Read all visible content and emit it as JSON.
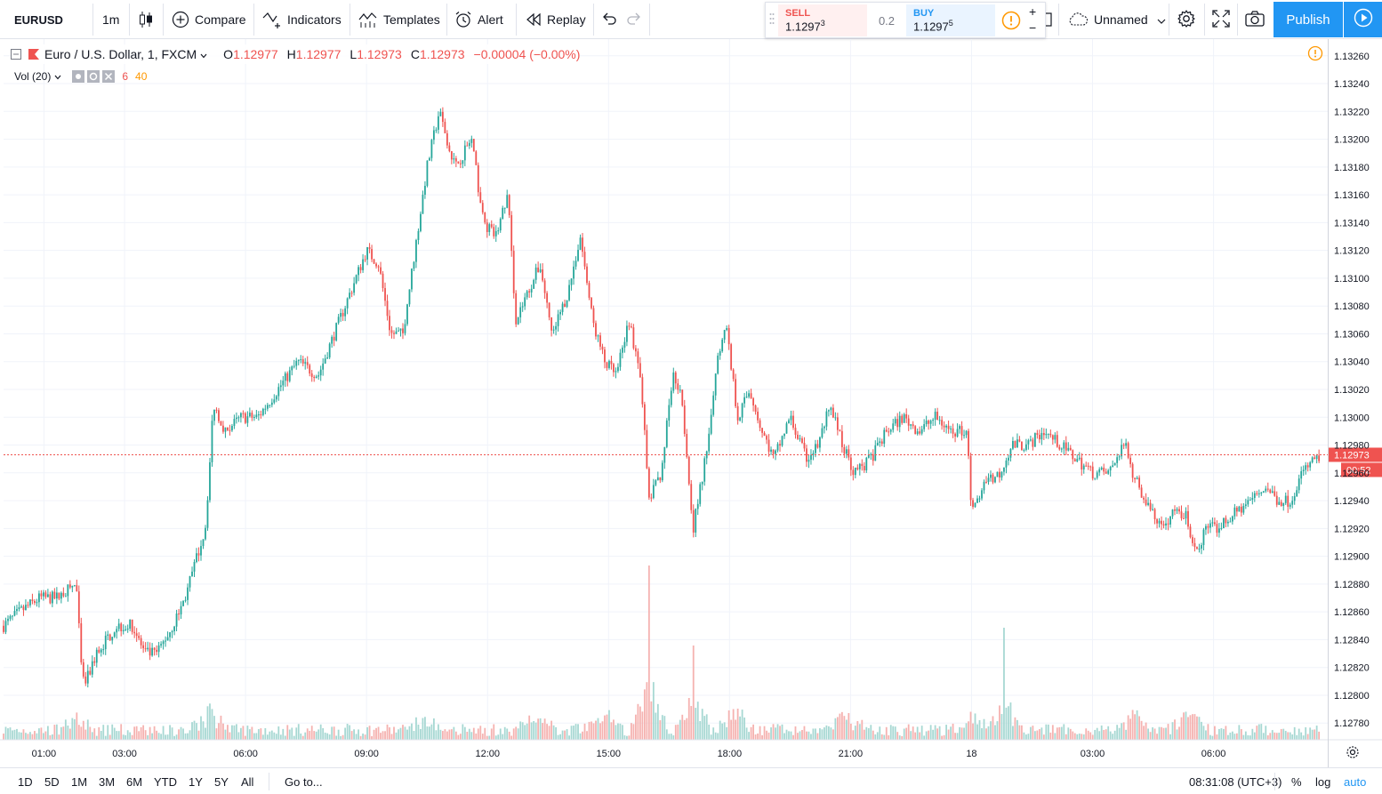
{
  "toolbar": {
    "symbol": "EURUSD",
    "interval": "1m",
    "compare_label": "Compare",
    "indicators_label": "Indicators",
    "templates_label": "Templates",
    "alert_label": "Alert",
    "replay_label": "Replay",
    "layout_name": "Unnamed",
    "publish_label": "Publish"
  },
  "trade_panel": {
    "sell_label": "SELL",
    "sell_price": "1.1297",
    "sell_price_sup": "3",
    "spread": "0.2",
    "buy_label": "BUY",
    "buy_price": "1.1297",
    "buy_price_sup": "5"
  },
  "legend": {
    "title": "Euro / U.S. Dollar, 1, FXCM",
    "open_label": "O",
    "open": "1.12977",
    "high_label": "H",
    "high": "1.12977",
    "low_label": "L",
    "low": "1.12973",
    "close_label": "C",
    "close": "1.12973",
    "change": "−0.00004 (−0.00%)",
    "vol_label": "Vol (20)",
    "vol_value": "6",
    "vol_ma": "40"
  },
  "chart_data": {
    "type": "candlestick",
    "symbol": "EURUSD",
    "interval": "1m",
    "exchange": "FXCM",
    "y_ticks": [
      "1.13260",
      "1.13240",
      "1.13220",
      "1.13200",
      "1.13180",
      "1.13160",
      "1.13140",
      "1.13120",
      "1.13100",
      "1.13080",
      "1.13060",
      "1.13040",
      "1.13020",
      "1.13000",
      "1.12980",
      "1.12960",
      "1.12940",
      "1.12920",
      "1.12900",
      "1.12880",
      "1.12860",
      "1.12840",
      "1.12820",
      "1.12800",
      "1.12780"
    ],
    "y_tick_values": [
      1.1326,
      1.1324,
      1.1322,
      1.132,
      1.1318,
      1.1316,
      1.1314,
      1.1312,
      1.131,
      1.1308,
      1.1306,
      1.1304,
      1.1302,
      1.13,
      1.1298,
      1.1296,
      1.1294,
      1.1292,
      1.129,
      1.1288,
      1.1286,
      1.1284,
      1.1282,
      1.128,
      1.1278
    ],
    "x_ticks": [
      "01:00",
      "03:00",
      "06:00",
      "09:00",
      "12:00",
      "15:00",
      "18:00",
      "21:00",
      "18",
      "03:00",
      "06:00"
    ],
    "x_tick_hours": [
      1,
      3,
      6,
      9,
      12,
      15,
      18,
      21,
      24,
      27,
      30
    ],
    "x_range_hours": [
      0.0,
      32.7
    ],
    "ylim": [
      1.12768,
      1.13272
    ],
    "current_price": "1.12973",
    "current_price_value": 1.12973,
    "countdown": "00:52",
    "up_color": "#26a69a",
    "down_color": "#ef5350",
    "vol_up_color": "#a7d8d3",
    "vol_down_color": "#f5b2b0",
    "price_path": [
      [
        0.0,
        1.1285
      ],
      [
        0.4,
        1.1286
      ],
      [
        0.9,
        1.1287
      ],
      [
        1.3,
        1.1287
      ],
      [
        1.8,
        1.1288
      ],
      [
        1.95,
        1.1281
      ],
      [
        2.05,
        1.1281
      ],
      [
        2.3,
        1.1283
      ],
      [
        2.8,
        1.1285
      ],
      [
        3.2,
        1.1285
      ],
      [
        3.5,
        1.1283
      ],
      [
        3.8,
        1.1283
      ],
      [
        4.2,
        1.1285
      ],
      [
        4.5,
        1.1287
      ],
      [
        4.8,
        1.129
      ],
      [
        5.0,
        1.1292
      ],
      [
        5.1,
        1.1296
      ],
      [
        5.2,
        1.1301
      ],
      [
        5.5,
        1.1299
      ],
      [
        5.9,
        1.13
      ],
      [
        6.3,
        1.13
      ],
      [
        6.8,
        1.1302
      ],
      [
        7.3,
        1.1304
      ],
      [
        7.8,
        1.1303
      ],
      [
        8.2,
        1.1306
      ],
      [
        8.6,
        1.1309
      ],
      [
        9.0,
        1.1312
      ],
      [
        9.3,
        1.1311
      ],
      [
        9.6,
        1.1306
      ],
      [
        9.9,
        1.1306
      ],
      [
        10.2,
        1.1312
      ],
      [
        10.5,
        1.1318
      ],
      [
        10.8,
        1.1322
      ],
      [
        11.2,
        1.1318
      ],
      [
        11.6,
        1.132
      ],
      [
        11.9,
        1.1314
      ],
      [
        12.2,
        1.1313
      ],
      [
        12.5,
        1.1316
      ],
      [
        12.7,
        1.1307
      ],
      [
        13.0,
        1.1309
      ],
      [
        13.3,
        1.1311
      ],
      [
        13.6,
        1.1306
      ],
      [
        14.0,
        1.1309
      ],
      [
        14.3,
        1.1313
      ],
      [
        14.6,
        1.1307
      ],
      [
        14.9,
        1.1304
      ],
      [
        15.2,
        1.1303
      ],
      [
        15.5,
        1.1307
      ],
      [
        15.8,
        1.1303
      ],
      [
        16.0,
        1.1294
      ],
      [
        16.3,
        1.1296
      ],
      [
        16.6,
        1.1303
      ],
      [
        16.8,
        1.1302
      ],
      [
        17.1,
        1.1292
      ],
      [
        17.4,
        1.1297
      ],
      [
        17.7,
        1.1304
      ],
      [
        17.9,
        1.1307
      ],
      [
        18.2,
        1.13
      ],
      [
        18.5,
        1.1302
      ],
      [
        18.8,
        1.1299
      ],
      [
        19.1,
        1.1297
      ],
      [
        19.5,
        1.13
      ],
      [
        19.9,
        1.1297
      ],
      [
        20.2,
        1.1298
      ],
      [
        20.5,
        1.1301
      ],
      [
        20.8,
        1.1298
      ],
      [
        21.1,
        1.1296
      ],
      [
        21.5,
        1.1297
      ],
      [
        21.9,
        1.1299
      ],
      [
        22.3,
        1.13
      ],
      [
        22.7,
        1.1299
      ],
      [
        23.1,
        1.13
      ],
      [
        23.5,
        1.1299
      ],
      [
        23.9,
        1.1299
      ],
      [
        24.0,
        1.1293
      ],
      [
        24.3,
        1.1295
      ],
      [
        24.7,
        1.1296
      ],
      [
        25.0,
        1.1298
      ],
      [
        25.4,
        1.1298
      ],
      [
        25.8,
        1.1299
      ],
      [
        26.2,
        1.1298
      ],
      [
        26.6,
        1.1297
      ],
      [
        27.0,
        1.1296
      ],
      [
        27.4,
        1.1296
      ],
      [
        27.8,
        1.1298
      ],
      [
        28.0,
        1.1296
      ],
      [
        28.3,
        1.1294
      ],
      [
        28.7,
        1.1292
      ],
      [
        29.0,
        1.1293
      ],
      [
        29.3,
        1.1293
      ],
      [
        29.6,
        1.129
      ],
      [
        29.8,
        1.1292
      ],
      [
        30.1,
        1.1292
      ],
      [
        30.5,
        1.1293
      ],
      [
        30.9,
        1.1294
      ],
      [
        31.3,
        1.1295
      ],
      [
        31.6,
        1.1294
      ],
      [
        31.9,
        1.1294
      ],
      [
        32.2,
        1.1296
      ],
      [
        32.5,
        1.1297
      ],
      [
        32.7,
        1.1297
      ]
    ],
    "volume_spikes": [
      [
        1.8,
        12
      ],
      [
        5.1,
        22
      ],
      [
        10.4,
        14
      ],
      [
        13.2,
        18
      ],
      [
        14.9,
        22
      ],
      [
        16.0,
        49
      ],
      [
        17.1,
        28
      ],
      [
        18.1,
        22
      ],
      [
        20.9,
        16
      ],
      [
        24.0,
        14
      ],
      [
        24.8,
        30
      ],
      [
        28.0,
        20
      ],
      [
        29.4,
        18
      ]
    ]
  },
  "bottombar": {
    "ranges": [
      "1D",
      "5D",
      "1M",
      "3M",
      "6M",
      "YTD",
      "1Y",
      "5Y",
      "All"
    ],
    "goto_label": "Go to...",
    "clock": "08:31:08 (UTC+3)",
    "percent_label": "%",
    "log_label": "log",
    "auto_label": "auto"
  },
  "colors": {
    "accent": "#2196f3",
    "up": "#26a69a",
    "down": "#ef5350",
    "grid": "#f0f3fa",
    "warning": "#ff9800"
  }
}
